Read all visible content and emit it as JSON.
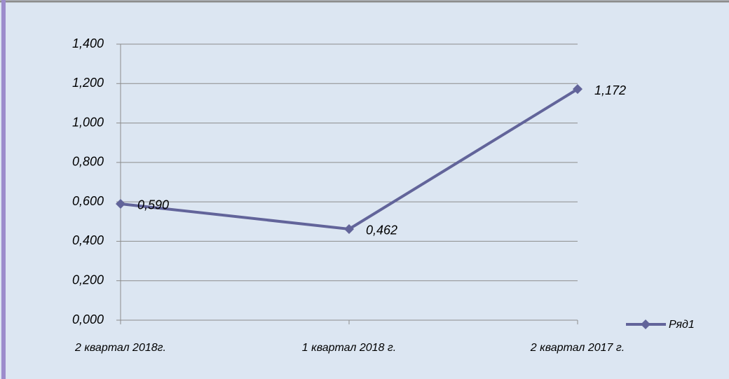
{
  "chart_data": {
    "type": "line",
    "categories": [
      "2 квартал 2018г.",
      "1 квартал 2018 г.",
      "2 квартал 2017 г."
    ],
    "series": [
      {
        "name": "Ряд1",
        "color": "#62649a",
        "values": [
          0.59,
          0.462,
          1.172
        ],
        "value_labels": [
          "0,590",
          "0,462",
          "1,172"
        ]
      }
    ],
    "ylim": [
      0,
      1.4
    ],
    "yticks": [
      {
        "value": 0,
        "label": "0,000"
      },
      {
        "value": 0.2,
        "label": "0,200"
      },
      {
        "value": 0.4,
        "label": "0,400"
      },
      {
        "value": 0.6,
        "label": "0,600"
      },
      {
        "value": 0.8,
        "label": "0,800"
      },
      {
        "value": 1.0,
        "label": "1,000"
      },
      {
        "value": 1.2,
        "label": "1,200"
      },
      {
        "value": 1.4,
        "label": "1,400"
      }
    ],
    "grid": true,
    "legend": "right"
  }
}
